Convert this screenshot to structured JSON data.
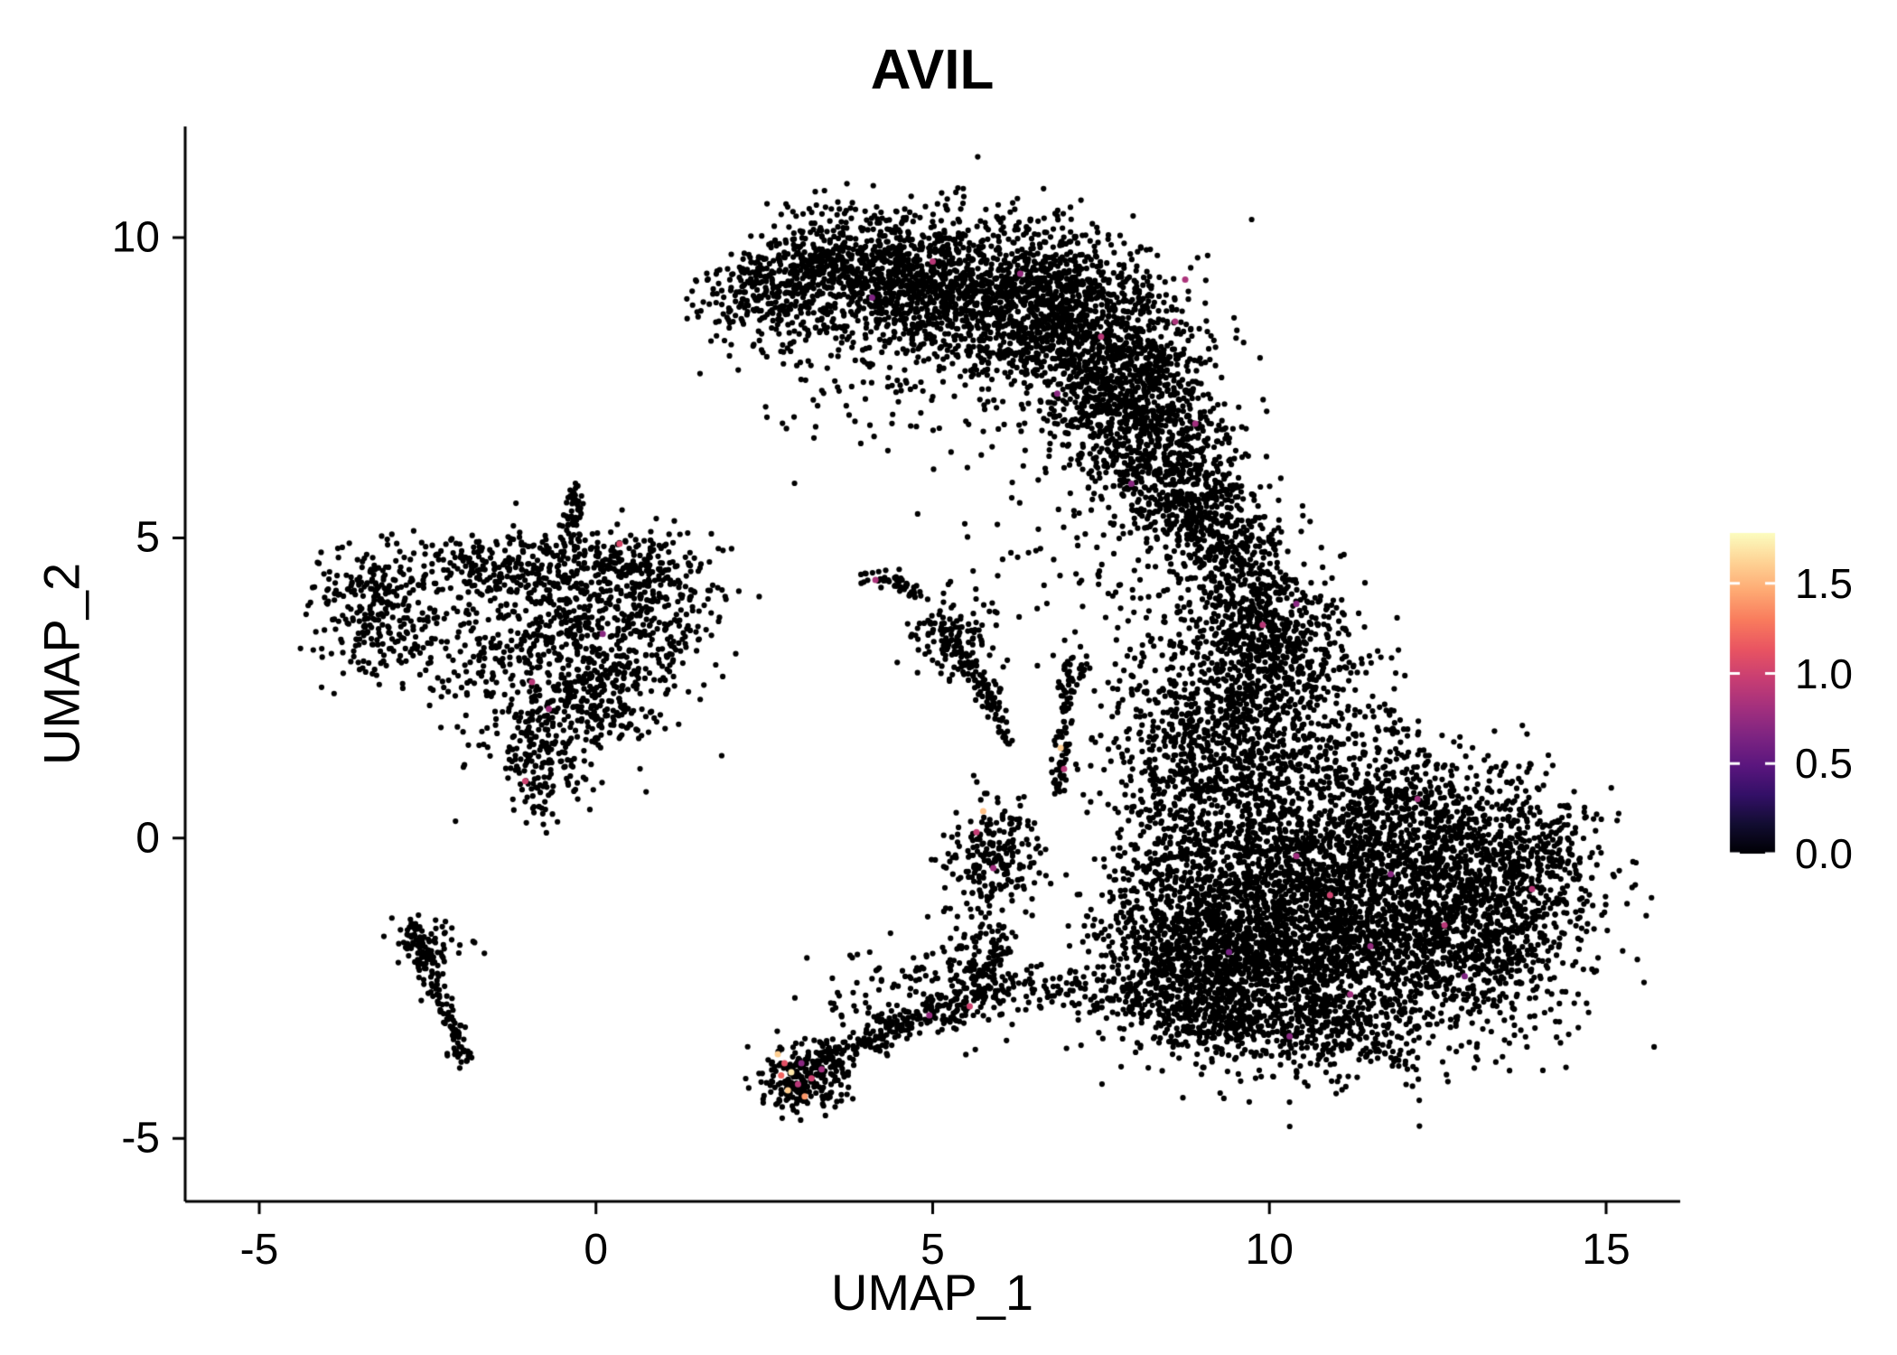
{
  "chart_data": {
    "type": "scatter",
    "title": "AVIL",
    "xlabel": "UMAP_1",
    "ylabel": "UMAP_2",
    "xlim": [
      -6.1,
      16.1
    ],
    "ylim": [
      -6.05,
      11.85
    ],
    "grid": false,
    "panel_background": "#FFFFFF",
    "point_color": "#000000",
    "x_ticks": {
      "values": [
        -5,
        0,
        5,
        10,
        15
      ],
      "labels": [
        "-5",
        "0",
        "5",
        "10",
        "15"
      ]
    },
    "y_ticks": {
      "values": [
        -5,
        0,
        5,
        10
      ],
      "labels": [
        "-5",
        "0",
        "5",
        "10"
      ]
    },
    "colorbar": {
      "position": "right",
      "tick_values": [
        0,
        0.5,
        1.0,
        1.5
      ],
      "tick_labels": [
        "0.0",
        "0.5",
        "1.0",
        "1.5"
      ],
      "vmin": 0,
      "vmax": 1.78,
      "palette_name": "magma",
      "colors": [
        "#000004",
        "#120D31",
        "#331067",
        "#5A167E",
        "#7D2482",
        "#A3307E",
        "#C83E73",
        "#E95462",
        "#F97B5D",
        "#FEA973",
        "#FED395",
        "#FCFDBF"
      ]
    },
    "cluster_schema": "gauss: [\"g\", cx, cy, sx, sy, n] ; line: [\"l\", x1, y1, x2, y2, width, n] (UMAP coordinates)",
    "clusters": [
      [
        "g",
        2.3,
        8.95,
        0.45,
        0.35,
        130
      ],
      [
        "g",
        3.1,
        9.4,
        0.55,
        0.45,
        300
      ],
      [
        "g",
        4.2,
        9.5,
        0.7,
        0.45,
        450
      ],
      [
        "g",
        5.3,
        9.2,
        0.8,
        0.6,
        600
      ],
      [
        "g",
        6.4,
        8.9,
        0.8,
        0.7,
        700
      ],
      [
        "g",
        7.3,
        8.3,
        0.7,
        0.8,
        700
      ],
      [
        "g",
        8.0,
        7.3,
        0.6,
        0.8,
        600
      ],
      [
        "g",
        8.5,
        6.3,
        0.5,
        0.7,
        400
      ],
      [
        "g",
        8.8,
        5.4,
        0.4,
        0.5,
        200
      ],
      [
        "g",
        5.0,
        8.0,
        1.3,
        0.8,
        150
      ],
      [
        "g",
        3.6,
        8.6,
        0.8,
        0.6,
        120
      ],
      [
        "g",
        -3.4,
        4.15,
        0.4,
        0.35,
        150
      ],
      [
        "g",
        -3.15,
        3.3,
        0.45,
        0.35,
        130
      ],
      [
        "g",
        -2.2,
        4.5,
        0.5,
        0.25,
        80
      ],
      [
        "g",
        -0.9,
        4.55,
        0.8,
        0.3,
        200
      ],
      [
        "g",
        0.4,
        4.55,
        0.5,
        0.35,
        150
      ],
      [
        "g",
        -0.5,
        3.4,
        0.7,
        0.6,
        320
      ],
      [
        "g",
        0.6,
        3.3,
        0.5,
        0.7,
        200
      ],
      [
        "g",
        -0.3,
        2.2,
        0.55,
        0.5,
        260
      ],
      [
        "g",
        -0.85,
        1.2,
        0.25,
        0.45,
        130
      ],
      [
        "l",
        -0.35,
        4.9,
        -0.3,
        5.85,
        0.08,
        45
      ],
      [
        "g",
        1.2,
        4.0,
        0.4,
        0.5,
        90
      ],
      [
        "g",
        -1.7,
        3.0,
        0.4,
        0.8,
        100
      ],
      [
        "l",
        -2.75,
        -1.45,
        -1.9,
        -3.8,
        0.09,
        140
      ],
      [
        "g",
        -2.45,
        -1.8,
        0.25,
        0.25,
        50
      ],
      [
        "l",
        3.95,
        4.4,
        4.75,
        4.15,
        0.07,
        45
      ],
      [
        "g",
        5.3,
        3.35,
        0.3,
        0.3,
        130
      ],
      [
        "l",
        5.45,
        2.95,
        5.95,
        2.2,
        0.1,
        70
      ],
      [
        "l",
        5.95,
        2.1,
        6.15,
        1.55,
        0.06,
        18
      ],
      [
        "l",
        7.0,
        2.75,
        6.85,
        0.7,
        0.07,
        80
      ],
      [
        "g",
        7.05,
        2.9,
        0.15,
        0.2,
        25
      ],
      [
        "g",
        3.05,
        -4.0,
        0.3,
        0.28,
        230
      ],
      [
        "l",
        3.25,
        -3.75,
        4.6,
        -3.1,
        0.14,
        120
      ],
      [
        "l",
        4.6,
        -3.05,
        6.2,
        -2.45,
        0.16,
        130
      ],
      [
        "g",
        5.75,
        -1.9,
        0.3,
        0.4,
        90
      ],
      [
        "g",
        5.9,
        -0.35,
        0.33,
        0.45,
        220
      ],
      [
        "g",
        5.3,
        -2.5,
        0.5,
        0.4,
        90
      ],
      [
        "g",
        4.2,
        -2.6,
        0.5,
        0.45,
        60
      ],
      [
        "l",
        6.3,
        -2.4,
        7.6,
        -2.8,
        0.2,
        60
      ],
      [
        "g",
        11.2,
        -1.6,
        1.5,
        1.0,
        2200
      ],
      [
        "g",
        9.6,
        -2.1,
        0.9,
        0.7,
        800
      ],
      [
        "g",
        12.9,
        -0.6,
        0.9,
        0.7,
        650
      ],
      [
        "g",
        12.1,
        0.5,
        1.0,
        0.55,
        450
      ],
      [
        "g",
        10.1,
        -0.4,
        0.8,
        0.7,
        550
      ],
      [
        "g",
        8.5,
        -2.4,
        0.6,
        0.6,
        300
      ],
      [
        "g",
        8.6,
        -1.0,
        0.5,
        0.8,
        280
      ],
      [
        "g",
        14.1,
        -0.3,
        0.35,
        0.5,
        130
      ],
      [
        "g",
        10.9,
        -3.2,
        0.9,
        0.35,
        220
      ],
      [
        "g",
        13.5,
        -1.8,
        0.5,
        0.5,
        180
      ],
      [
        "g",
        9.0,
        -3.0,
        0.5,
        0.3,
        120
      ],
      [
        "g",
        9.3,
        0.9,
        0.7,
        0.7,
        420
      ],
      [
        "g",
        9.6,
        2.2,
        0.65,
        0.75,
        450
      ],
      [
        "g",
        9.9,
        3.3,
        0.55,
        0.65,
        350
      ],
      [
        "g",
        9.7,
        4.4,
        0.45,
        0.55,
        220
      ],
      [
        "g",
        9.3,
        5.2,
        0.35,
        0.5,
        130
      ],
      [
        "g",
        8.4,
        1.6,
        0.5,
        1.1,
        180
      ],
      [
        "g",
        10.8,
        2.3,
        0.55,
        0.9,
        170
      ],
      [
        "g",
        11.4,
        1.5,
        0.5,
        0.6,
        90
      ],
      [
        "g",
        8.9,
        4.0,
        0.8,
        1.0,
        100
      ],
      [
        "g",
        7.2,
        4.6,
        1.2,
        1.2,
        60
      ]
    ],
    "highlight_schema": "[x, y, expression_value]",
    "highlights": [
      [
        2.7,
        -3.6,
        1.6
      ],
      [
        2.8,
        -3.75,
        1.1
      ],
      [
        2.9,
        -3.9,
        1.7
      ],
      [
        3.0,
        -4.1,
        0.9
      ],
      [
        3.1,
        -4.3,
        1.4
      ],
      [
        2.85,
        -4.2,
        1.6
      ],
      [
        3.2,
        -4.0,
        1.0
      ],
      [
        3.35,
        -3.85,
        0.8
      ],
      [
        2.75,
        -3.95,
        1.2
      ],
      [
        3.05,
        -3.75,
        0.7
      ],
      [
        5.75,
        0.45,
        1.55
      ],
      [
        5.65,
        0.1,
        0.95
      ],
      [
        5.9,
        -0.5,
        0.8
      ],
      [
        5.55,
        -2.8,
        1.0
      ],
      [
        4.95,
        -2.95,
        0.75
      ],
      [
        6.9,
        1.5,
        1.6
      ],
      [
        6.95,
        1.15,
        0.9
      ],
      [
        0.35,
        4.9,
        1.05
      ],
      [
        -0.95,
        2.6,
        0.9
      ],
      [
        -0.7,
        2.15,
        0.8
      ],
      [
        -1.05,
        0.95,
        1.0
      ],
      [
        0.1,
        3.4,
        0.7
      ],
      [
        5.0,
        9.6,
        0.9
      ],
      [
        6.3,
        9.4,
        0.75
      ],
      [
        7.5,
        8.35,
        0.9
      ],
      [
        8.6,
        8.6,
        0.85
      ],
      [
        6.85,
        7.4,
        0.7
      ],
      [
        8.9,
        6.9,
        0.8
      ],
      [
        7.95,
        5.9,
        0.7
      ],
      [
        4.1,
        9.0,
        0.65
      ],
      [
        8.75,
        9.3,
        0.85
      ],
      [
        9.9,
        3.55,
        0.9
      ],
      [
        10.4,
        3.9,
        0.7
      ],
      [
        10.4,
        -0.3,
        0.8
      ],
      [
        10.9,
        -0.95,
        1.0
      ],
      [
        11.8,
        -0.6,
        0.7
      ],
      [
        12.6,
        -1.45,
        0.9
      ],
      [
        11.2,
        -2.6,
        0.8
      ],
      [
        13.9,
        -0.85,
        0.9
      ],
      [
        10.3,
        -3.3,
        0.7
      ],
      [
        12.2,
        0.65,
        0.8
      ],
      [
        9.4,
        -1.9,
        0.6
      ],
      [
        11.5,
        -1.8,
        0.75
      ],
      [
        12.9,
        -2.3,
        0.65
      ],
      [
        4.15,
        4.3,
        0.85
      ]
    ]
  }
}
